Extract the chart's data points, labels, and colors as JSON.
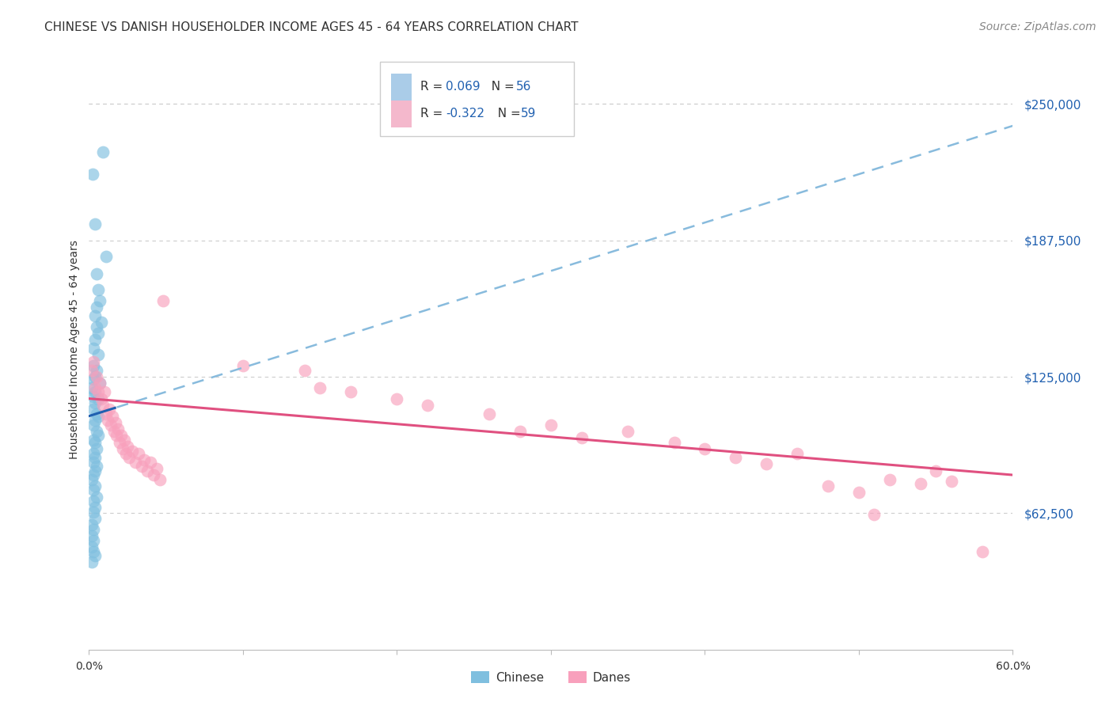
{
  "title": "CHINESE VS DANISH HOUSEHOLDER INCOME AGES 45 - 64 YEARS CORRELATION CHART",
  "source": "Source: ZipAtlas.com",
  "ylabel": "Householder Income Ages 45 - 64 years",
  "ytick_labels": [
    "$62,500",
    "$125,000",
    "$187,500",
    "$250,000"
  ],
  "ytick_values": [
    62500,
    125000,
    187500,
    250000
  ],
  "ymin": 0,
  "ymax": 275000,
  "xmin": 0.0,
  "xmax": 0.6,
  "chinese_color": "#7fbfdf",
  "danes_color": "#f8a0bc",
  "chinese_line_color": "#2060b0",
  "danes_line_color": "#e05080",
  "dashed_line_color": "#88bbdd",
  "background_color": "#ffffff",
  "grid_color": "#cccccc",
  "legend_box_color": "#aacce8",
  "legend_box_color2": "#f4b8cc",
  "chinese_pts": [
    [
      0.0025,
      218000
    ],
    [
      0.009,
      228000
    ],
    [
      0.004,
      195000
    ],
    [
      0.011,
      180000
    ],
    [
      0.005,
      172000
    ],
    [
      0.006,
      165000
    ],
    [
      0.007,
      160000
    ],
    [
      0.005,
      157000
    ],
    [
      0.004,
      153000
    ],
    [
      0.008,
      150000
    ],
    [
      0.005,
      148000
    ],
    [
      0.006,
      145000
    ],
    [
      0.004,
      142000
    ],
    [
      0.003,
      138000
    ],
    [
      0.006,
      135000
    ],
    [
      0.003,
      130000
    ],
    [
      0.005,
      128000
    ],
    [
      0.004,
      125000
    ],
    [
      0.003,
      124000
    ],
    [
      0.007,
      122000
    ],
    [
      0.002,
      120000
    ],
    [
      0.004,
      118000
    ],
    [
      0.003,
      116000
    ],
    [
      0.006,
      115000
    ],
    [
      0.004,
      113000
    ],
    [
      0.003,
      110000
    ],
    [
      0.005,
      108000
    ],
    [
      0.006,
      107000
    ],
    [
      0.004,
      105000
    ],
    [
      0.003,
      103000
    ],
    [
      0.005,
      100000
    ],
    [
      0.006,
      98000
    ],
    [
      0.003,
      96000
    ],
    [
      0.004,
      95000
    ],
    [
      0.005,
      92000
    ],
    [
      0.003,
      90000
    ],
    [
      0.004,
      88000
    ],
    [
      0.003,
      86000
    ],
    [
      0.005,
      84000
    ],
    [
      0.004,
      82000
    ],
    [
      0.003,
      80000
    ],
    [
      0.002,
      78000
    ],
    [
      0.004,
      75000
    ],
    [
      0.003,
      73000
    ],
    [
      0.005,
      70000
    ],
    [
      0.003,
      68000
    ],
    [
      0.004,
      65000
    ],
    [
      0.003,
      63000
    ],
    [
      0.004,
      60000
    ],
    [
      0.002,
      57000
    ],
    [
      0.003,
      55000
    ],
    [
      0.002,
      52000
    ],
    [
      0.003,
      50000
    ],
    [
      0.002,
      47000
    ],
    [
      0.003,
      45000
    ],
    [
      0.004,
      43000
    ],
    [
      0.002,
      40000
    ]
  ],
  "danes_pts": [
    [
      0.002,
      128000
    ],
    [
      0.003,
      132000
    ],
    [
      0.004,
      120000
    ],
    [
      0.005,
      125000
    ],
    [
      0.006,
      118000
    ],
    [
      0.007,
      122000
    ],
    [
      0.008,
      115000
    ],
    [
      0.009,
      112000
    ],
    [
      0.01,
      118000
    ],
    [
      0.011,
      108000
    ],
    [
      0.012,
      105000
    ],
    [
      0.013,
      110000
    ],
    [
      0.014,
      103000
    ],
    [
      0.015,
      107000
    ],
    [
      0.016,
      100000
    ],
    [
      0.017,
      104000
    ],
    [
      0.018,
      98000
    ],
    [
      0.019,
      101000
    ],
    [
      0.02,
      95000
    ],
    [
      0.021,
      98000
    ],
    [
      0.022,
      92000
    ],
    [
      0.023,
      96000
    ],
    [
      0.024,
      90000
    ],
    [
      0.025,
      93000
    ],
    [
      0.026,
      88000
    ],
    [
      0.028,
      91000
    ],
    [
      0.03,
      86000
    ],
    [
      0.032,
      90000
    ],
    [
      0.034,
      84000
    ],
    [
      0.036,
      87000
    ],
    [
      0.038,
      82000
    ],
    [
      0.04,
      86000
    ],
    [
      0.042,
      80000
    ],
    [
      0.044,
      83000
    ],
    [
      0.046,
      78000
    ],
    [
      0.048,
      160000
    ],
    [
      0.1,
      130000
    ],
    [
      0.14,
      128000
    ],
    [
      0.15,
      120000
    ],
    [
      0.17,
      118000
    ],
    [
      0.2,
      115000
    ],
    [
      0.22,
      112000
    ],
    [
      0.26,
      108000
    ],
    [
      0.28,
      100000
    ],
    [
      0.3,
      103000
    ],
    [
      0.32,
      97000
    ],
    [
      0.35,
      100000
    ],
    [
      0.38,
      95000
    ],
    [
      0.4,
      92000
    ],
    [
      0.42,
      88000
    ],
    [
      0.44,
      85000
    ],
    [
      0.46,
      90000
    ],
    [
      0.48,
      75000
    ],
    [
      0.5,
      72000
    ],
    [
      0.51,
      62000
    ],
    [
      0.52,
      78000
    ],
    [
      0.54,
      76000
    ],
    [
      0.55,
      82000
    ],
    [
      0.56,
      77000
    ],
    [
      0.58,
      45000
    ]
  ],
  "title_fontsize": 11,
  "axis_fontsize": 10,
  "ytick_fontsize": 11,
  "source_fontsize": 10
}
